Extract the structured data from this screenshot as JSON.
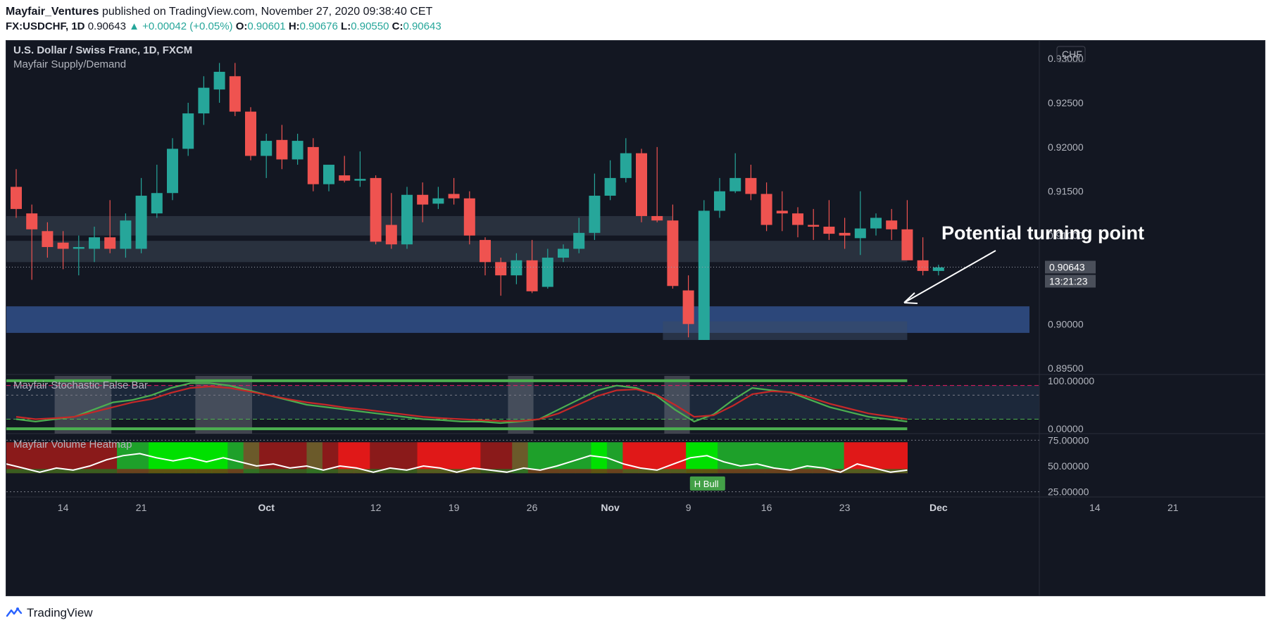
{
  "header": {
    "author": "Mayfair_Ventures",
    "published_text": "published on TradingView.com, November 27, 2020 09:38:40 CET",
    "symbol": "FX:USDCHF, 1D",
    "last": "0.90643",
    "change": "+0.00042 (+0.05%)",
    "o_label": "O:",
    "o": "0.90601",
    "h_label": "H:",
    "h": "0.90676",
    "l_label": "L:",
    "l": "0.90550",
    "c_label": "C:",
    "c": "0.90643"
  },
  "footer": {
    "brand": "TradingView"
  },
  "colors": {
    "up": "#26a69a",
    "down": "#ef5350",
    "background": "#131722",
    "supply_zone": "#2a3340",
    "demand_zone": "#2d4a80",
    "text": "#d1d4dc"
  },
  "chart_data": [
    {
      "type": "candlestick",
      "title": "U.S. Dollar / Swiss Franc, 1D, FXCM",
      "indicator": "Mayfair Supply/Demand",
      "currency_badge": "CHF",
      "price_label": "0.90643",
      "countdown_label": "13:21:23",
      "annotation": "Potential turning point",
      "y_ticks": [
        "0.93000",
        "0.92500",
        "0.92000",
        "0.91500",
        "0.91000",
        "0.90000",
        "0.89500"
      ],
      "ylim": [
        0.8943,
        0.932
      ],
      "x_ticks": [
        {
          "label": "14",
          "bar": 3
        },
        {
          "label": "21",
          "bar": 8
        },
        {
          "label": "Oct",
          "bar": 16
        },
        {
          "label": "12",
          "bar": 23
        },
        {
          "label": "19",
          "bar": 28
        },
        {
          "label": "26",
          "bar": 33
        },
        {
          "label": "Nov",
          "bar": 38
        },
        {
          "label": "9",
          "bar": 43
        },
        {
          "label": "16",
          "bar": 48
        },
        {
          "label": "23",
          "bar": 53
        },
        {
          "label": "Dec",
          "bar": 59
        },
        {
          "label": "14",
          "bar": 69
        },
        {
          "label": "21",
          "bar": 74
        }
      ],
      "zones": [
        {
          "kind": "supply",
          "from_bar": 0,
          "to_bar": 42,
          "top": 0.9122,
          "bottom": 0.91
        },
        {
          "kind": "supply",
          "from_bar": 0,
          "to_bar": 57,
          "top": 0.9094,
          "bottom": 0.907
        },
        {
          "kind": "demand",
          "from_bar": 0,
          "to_bar": 76,
          "top": 0.902,
          "bottom": 0.899
        },
        {
          "kind": "demand-inner",
          "from_bar": 42,
          "to_bar": 57,
          "top": 0.9003,
          "bottom": 0.8982
        }
      ],
      "candles": [
        {
          "o": 0.9155,
          "h": 0.9175,
          "l": 0.912,
          "c": 0.913
        },
        {
          "o": 0.9125,
          "h": 0.9135,
          "l": 0.905,
          "c": 0.9107
        },
        {
          "o": 0.9105,
          "h": 0.9115,
          "l": 0.9075,
          "c": 0.9087
        },
        {
          "o": 0.9092,
          "h": 0.9105,
          "l": 0.9062,
          "c": 0.9085
        },
        {
          "o": 0.9085,
          "h": 0.91,
          "l": 0.9055,
          "c": 0.9087
        },
        {
          "o": 0.9085,
          "h": 0.911,
          "l": 0.907,
          "c": 0.9098
        },
        {
          "o": 0.9098,
          "h": 0.914,
          "l": 0.908,
          "c": 0.9085
        },
        {
          "o": 0.9085,
          "h": 0.9125,
          "l": 0.9075,
          "c": 0.9117
        },
        {
          "o": 0.9085,
          "h": 0.9165,
          "l": 0.908,
          "c": 0.9145
        },
        {
          "o": 0.9125,
          "h": 0.918,
          "l": 0.912,
          "c": 0.9148
        },
        {
          "o": 0.9148,
          "h": 0.921,
          "l": 0.914,
          "c": 0.9198
        },
        {
          "o": 0.9198,
          "h": 0.925,
          "l": 0.919,
          "c": 0.9238
        },
        {
          "o": 0.9238,
          "h": 0.928,
          "l": 0.9225,
          "c": 0.9267
        },
        {
          "o": 0.9265,
          "h": 0.9295,
          "l": 0.925,
          "c": 0.9285
        },
        {
          "o": 0.928,
          "h": 0.9295,
          "l": 0.9235,
          "c": 0.924
        },
        {
          "o": 0.924,
          "h": 0.9245,
          "l": 0.9185,
          "c": 0.919
        },
        {
          "o": 0.919,
          "h": 0.9215,
          "l": 0.9165,
          "c": 0.9207
        },
        {
          "o": 0.9208,
          "h": 0.9225,
          "l": 0.9175,
          "c": 0.9186
        },
        {
          "o": 0.9186,
          "h": 0.9215,
          "l": 0.918,
          "c": 0.9207
        },
        {
          "o": 0.92,
          "h": 0.921,
          "l": 0.915,
          "c": 0.9158
        },
        {
          "o": 0.9158,
          "h": 0.918,
          "l": 0.915,
          "c": 0.918
        },
        {
          "o": 0.9168,
          "h": 0.919,
          "l": 0.916,
          "c": 0.9162
        },
        {
          "o": 0.9162,
          "h": 0.9195,
          "l": 0.9155,
          "c": 0.9164
        },
        {
          "o": 0.9165,
          "h": 0.9168,
          "l": 0.909,
          "c": 0.9093
        },
        {
          "o": 0.9112,
          "h": 0.9148,
          "l": 0.9085,
          "c": 0.909
        },
        {
          "o": 0.909,
          "h": 0.9155,
          "l": 0.9085,
          "c": 0.9146
        },
        {
          "o": 0.9146,
          "h": 0.916,
          "l": 0.9115,
          "c": 0.9135
        },
        {
          "o": 0.9136,
          "h": 0.9155,
          "l": 0.913,
          "c": 0.9142
        },
        {
          "o": 0.9147,
          "h": 0.9165,
          "l": 0.9135,
          "c": 0.9142
        },
        {
          "o": 0.9142,
          "h": 0.915,
          "l": 0.909,
          "c": 0.91
        },
        {
          "o": 0.9095,
          "h": 0.9098,
          "l": 0.9055,
          "c": 0.907
        },
        {
          "o": 0.907,
          "h": 0.9075,
          "l": 0.9032,
          "c": 0.9055
        },
        {
          "o": 0.9055,
          "h": 0.908,
          "l": 0.9045,
          "c": 0.9072
        },
        {
          "o": 0.9072,
          "h": 0.9095,
          "l": 0.9035,
          "c": 0.9037
        },
        {
          "o": 0.9042,
          "h": 0.9085,
          "l": 0.904,
          "c": 0.9075
        },
        {
          "o": 0.9075,
          "h": 0.909,
          "l": 0.907,
          "c": 0.9085
        },
        {
          "o": 0.9085,
          "h": 0.912,
          "l": 0.908,
          "c": 0.9103
        },
        {
          "o": 0.9103,
          "h": 0.917,
          "l": 0.9095,
          "c": 0.9145
        },
        {
          "o": 0.9145,
          "h": 0.9185,
          "l": 0.914,
          "c": 0.9165
        },
        {
          "o": 0.9165,
          "h": 0.921,
          "l": 0.916,
          "c": 0.9193
        },
        {
          "o": 0.9193,
          "h": 0.9198,
          "l": 0.9115,
          "c": 0.9122
        },
        {
          "o": 0.9122,
          "h": 0.92,
          "l": 0.9115,
          "c": 0.9117
        },
        {
          "o": 0.9117,
          "h": 0.9135,
          "l": 0.904,
          "c": 0.9043
        },
        {
          "o": 0.9038,
          "h": 0.9055,
          "l": 0.8985,
          "c": 0.9
        },
        {
          "o": 0.8982,
          "h": 0.914,
          "l": 0.8982,
          "c": 0.9128
        },
        {
          "o": 0.9128,
          "h": 0.9165,
          "l": 0.912,
          "c": 0.915
        },
        {
          "o": 0.915,
          "h": 0.9193,
          "l": 0.9148,
          "c": 0.9165
        },
        {
          "o": 0.9165,
          "h": 0.918,
          "l": 0.914,
          "c": 0.9147
        },
        {
          "o": 0.9147,
          "h": 0.916,
          "l": 0.9105,
          "c": 0.9112
        },
        {
          "o": 0.9128,
          "h": 0.915,
          "l": 0.9105,
          "c": 0.9125
        },
        {
          "o": 0.9125,
          "h": 0.9132,
          "l": 0.9098,
          "c": 0.9112
        },
        {
          "o": 0.9112,
          "h": 0.913,
          "l": 0.9095,
          "c": 0.911
        },
        {
          "o": 0.911,
          "h": 0.914,
          "l": 0.9095,
          "c": 0.9102
        },
        {
          "o": 0.9103,
          "h": 0.912,
          "l": 0.9085,
          "c": 0.91
        },
        {
          "o": 0.9097,
          "h": 0.915,
          "l": 0.9078,
          "c": 0.9108
        },
        {
          "o": 0.9108,
          "h": 0.9125,
          "l": 0.91,
          "c": 0.912
        },
        {
          "o": 0.9117,
          "h": 0.913,
          "l": 0.9095,
          "c": 0.9107
        },
        {
          "o": 0.9107,
          "h": 0.914,
          "l": 0.9075,
          "c": 0.9072
        },
        {
          "o": 0.9072,
          "h": 0.9098,
          "l": 0.9055,
          "c": 0.906
        },
        {
          "o": 0.906,
          "h": 0.9067,
          "l": 0.9055,
          "c": 0.9064
        }
      ]
    },
    {
      "type": "line",
      "title": "Mayfair Stochastic False Bar",
      "y_ticks": [
        "100.00000",
        "0.00000"
      ],
      "ylim": [
        -10,
        110
      ],
      "levels": [
        90,
        70,
        20
      ],
      "highlight_bars": [
        [
          3,
          6
        ],
        [
          12,
          15
        ],
        [
          32,
          33
        ],
        [
          42,
          43
        ]
      ],
      "series": [
        {
          "values": [
            20,
            15,
            20,
            25,
            40,
            55,
            60,
            70,
            85,
            95,
            95,
            90,
            80,
            70,
            60,
            50,
            45,
            40,
            35,
            30,
            25,
            20,
            18,
            15,
            15,
            12,
            15,
            20,
            40,
            60,
            80,
            90,
            85,
            70,
            40,
            15,
            30,
            60,
            85,
            80,
            75,
            60,
            45,
            35,
            25,
            20,
            15
          ]
        },
        {
          "values": [
            25,
            20,
            22,
            25,
            35,
            45,
            55,
            62,
            75,
            85,
            88,
            85,
            78,
            70,
            62,
            55,
            50,
            44,
            40,
            35,
            30,
            25,
            22,
            20,
            18,
            16,
            16,
            20,
            32,
            50,
            68,
            80,
            82,
            72,
            50,
            25,
            28,
            48,
            72,
            78,
            76,
            65,
            52,
            42,
            32,
            26,
            20
          ]
        }
      ]
    },
    {
      "type": "heatmap",
      "title": "Mayfair Volume Heatmap",
      "y_ticks": [
        "75.00000",
        "50.00000",
        "25.00000"
      ],
      "ylim": [
        20,
        80
      ],
      "label": "H Bull",
      "columns": [
        -1,
        -1,
        -1,
        -1,
        -1,
        -1,
        -1,
        1,
        1,
        2,
        2,
        2,
        2,
        2,
        1,
        0,
        -1,
        -1,
        -1,
        0,
        -1,
        -2,
        -2,
        -1,
        -1,
        -1,
        -2,
        -2,
        -2,
        -2,
        -1,
        -1,
        0,
        1,
        1,
        1,
        1,
        2,
        1,
        -2,
        -2,
        -2,
        -2,
        2,
        2,
        1,
        1,
        1,
        1,
        1,
        1,
        1,
        1,
        -2,
        -2,
        -2,
        -2
      ],
      "line": [
        52,
        48,
        44,
        48,
        46,
        50,
        56,
        60,
        62,
        58,
        55,
        58,
        54,
        58,
        54,
        50,
        52,
        48,
        50,
        46,
        50,
        48,
        44,
        48,
        46,
        50,
        48,
        44,
        48,
        46,
        44,
        48,
        46,
        50,
        55,
        60,
        58,
        52,
        48,
        46,
        52,
        58,
        60,
        54,
        50,
        52,
        48,
        46,
        50,
        48,
        44,
        52,
        48,
        44,
        46
      ]
    }
  ]
}
